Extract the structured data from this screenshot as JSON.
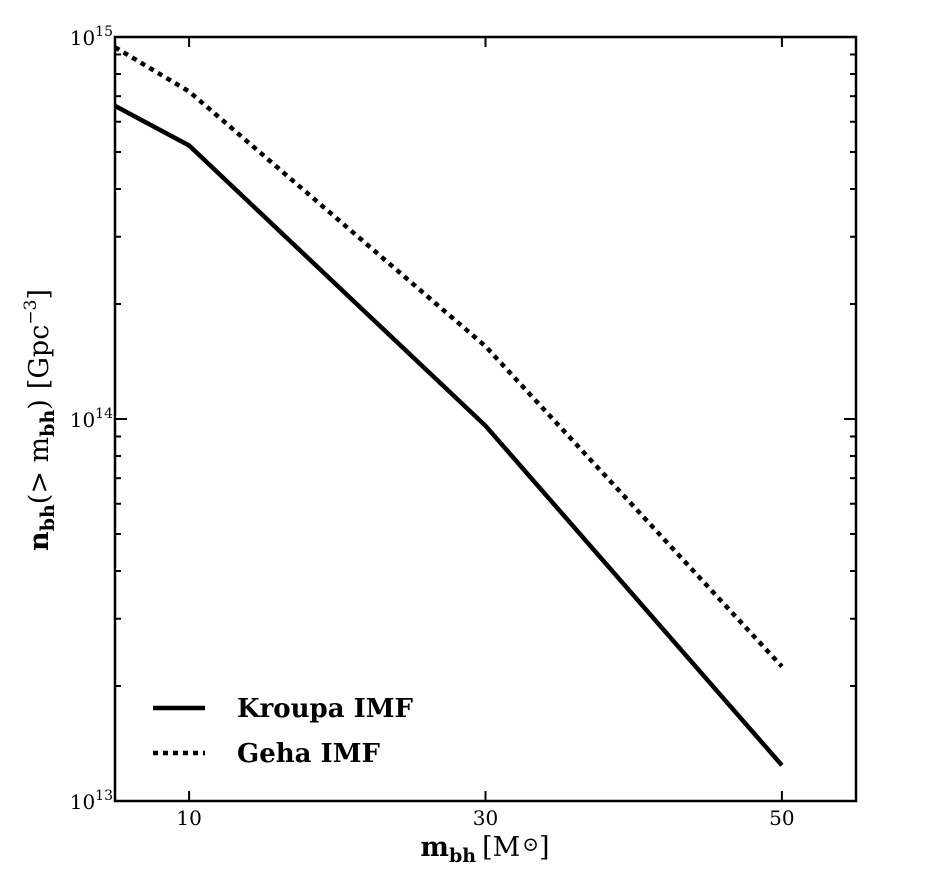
{
  "chart_data": {
    "type": "line",
    "x_scale": "linear",
    "y_scale": "log",
    "xlim": [
      5,
      55
    ],
    "ylim": [
      10000000000000.0,
      1000000000000000.0
    ],
    "x_ticks": [
      10,
      30,
      50
    ],
    "x_tick_labels": [
      "10",
      "30",
      "50"
    ],
    "y_ticks": [
      10000000000000.0,
      100000000000000.0,
      1000000000000000.0
    ],
    "y_tick_labels": [
      {
        "base": "10",
        "exp": "13"
      },
      {
        "base": "10",
        "exp": "14"
      },
      {
        "base": "10",
        "exp": "15"
      }
    ],
    "xlabel": {
      "main": "m",
      "sub": "bh",
      "unit_open": "[M",
      "unit_close": "]"
    },
    "ylabel": {
      "main": "n",
      "sub": "bh",
      "middle_open": "(> m",
      "middle_sub": "bh",
      "middle_close": ")",
      "unit_open": "[Gpc",
      "unit_exp": "−3",
      "unit_close": "]"
    },
    "legend_position": "bottom-left",
    "series": [
      {
        "name": "Kroupa IMF",
        "style": "solid",
        "color": "#000000",
        "x": [
          5,
          10,
          30,
          50
        ],
        "y": [
          660000000000000.0,
          520000000000000.0,
          96000000000000.0,
          12400000000000.0
        ]
      },
      {
        "name": "Geha IMF",
        "style": "dotted",
        "color": "#000000",
        "x": [
          5,
          10,
          30,
          50
        ],
        "y": [
          940000000000000.0,
          720000000000000.0,
          155000000000000.0,
          22500000000000.0
        ]
      }
    ]
  }
}
